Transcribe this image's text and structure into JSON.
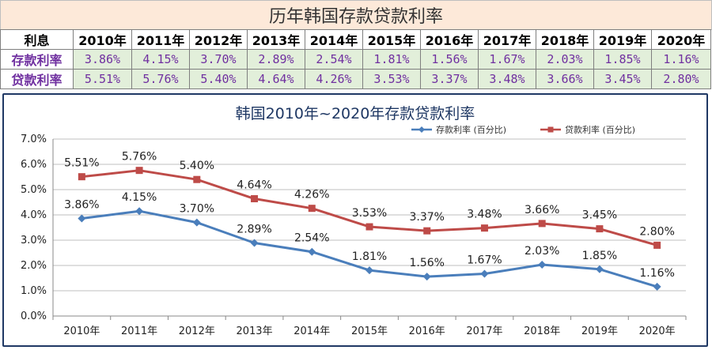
{
  "table": {
    "title": "历年韩国存款贷款利率",
    "header_label": "利息",
    "years": [
      "2010年",
      "2011年",
      "2012年",
      "2013年",
      "2014年",
      "2015年",
      "2016年",
      "2017年",
      "2018年",
      "2019年",
      "2020年"
    ],
    "rows": [
      {
        "label": "存款利率",
        "values": [
          "3.86%",
          "4.15%",
          "3.70%",
          "2.89%",
          "2.54%",
          "1.81%",
          "1.56%",
          "1.67%",
          "2.03%",
          "1.85%",
          "1.16%"
        ]
      },
      {
        "label": "贷款利率",
        "values": [
          "5.51%",
          "5.76%",
          "5.40%",
          "4.64%",
          "4.26%",
          "3.53%",
          "3.37%",
          "3.48%",
          "3.66%",
          "3.45%",
          "2.80%"
        ]
      }
    ]
  },
  "chart_data": {
    "type": "line",
    "title": "韩国2010年~2020年存款贷款利率",
    "categories": [
      "2010年",
      "2011年",
      "2012年",
      "2013年",
      "2014年",
      "2015年",
      "2016年",
      "2017年",
      "2018年",
      "2019年",
      "2020年"
    ],
    "series": [
      {
        "name": "存款利率 (百分比)",
        "color": "#4a7ebb",
        "marker": "diamond",
        "values": [
          3.86,
          4.15,
          3.7,
          2.89,
          2.54,
          1.81,
          1.56,
          1.67,
          2.03,
          1.85,
          1.16
        ]
      },
      {
        "name": "贷款利率 (百分比)",
        "color": "#be4b48",
        "marker": "square",
        "values": [
          5.51,
          5.76,
          5.4,
          4.64,
          4.26,
          3.53,
          3.37,
          3.48,
          3.66,
          3.45,
          2.8
        ]
      }
    ],
    "ylim": [
      0,
      7
    ],
    "yticks": [
      "0.0%",
      "1.0%",
      "2.0%",
      "3.0%",
      "4.0%",
      "5.0%",
      "6.0%",
      "7.0%"
    ],
    "grid": true,
    "legend_position": "top-right",
    "xlabel": "",
    "ylabel": ""
  }
}
